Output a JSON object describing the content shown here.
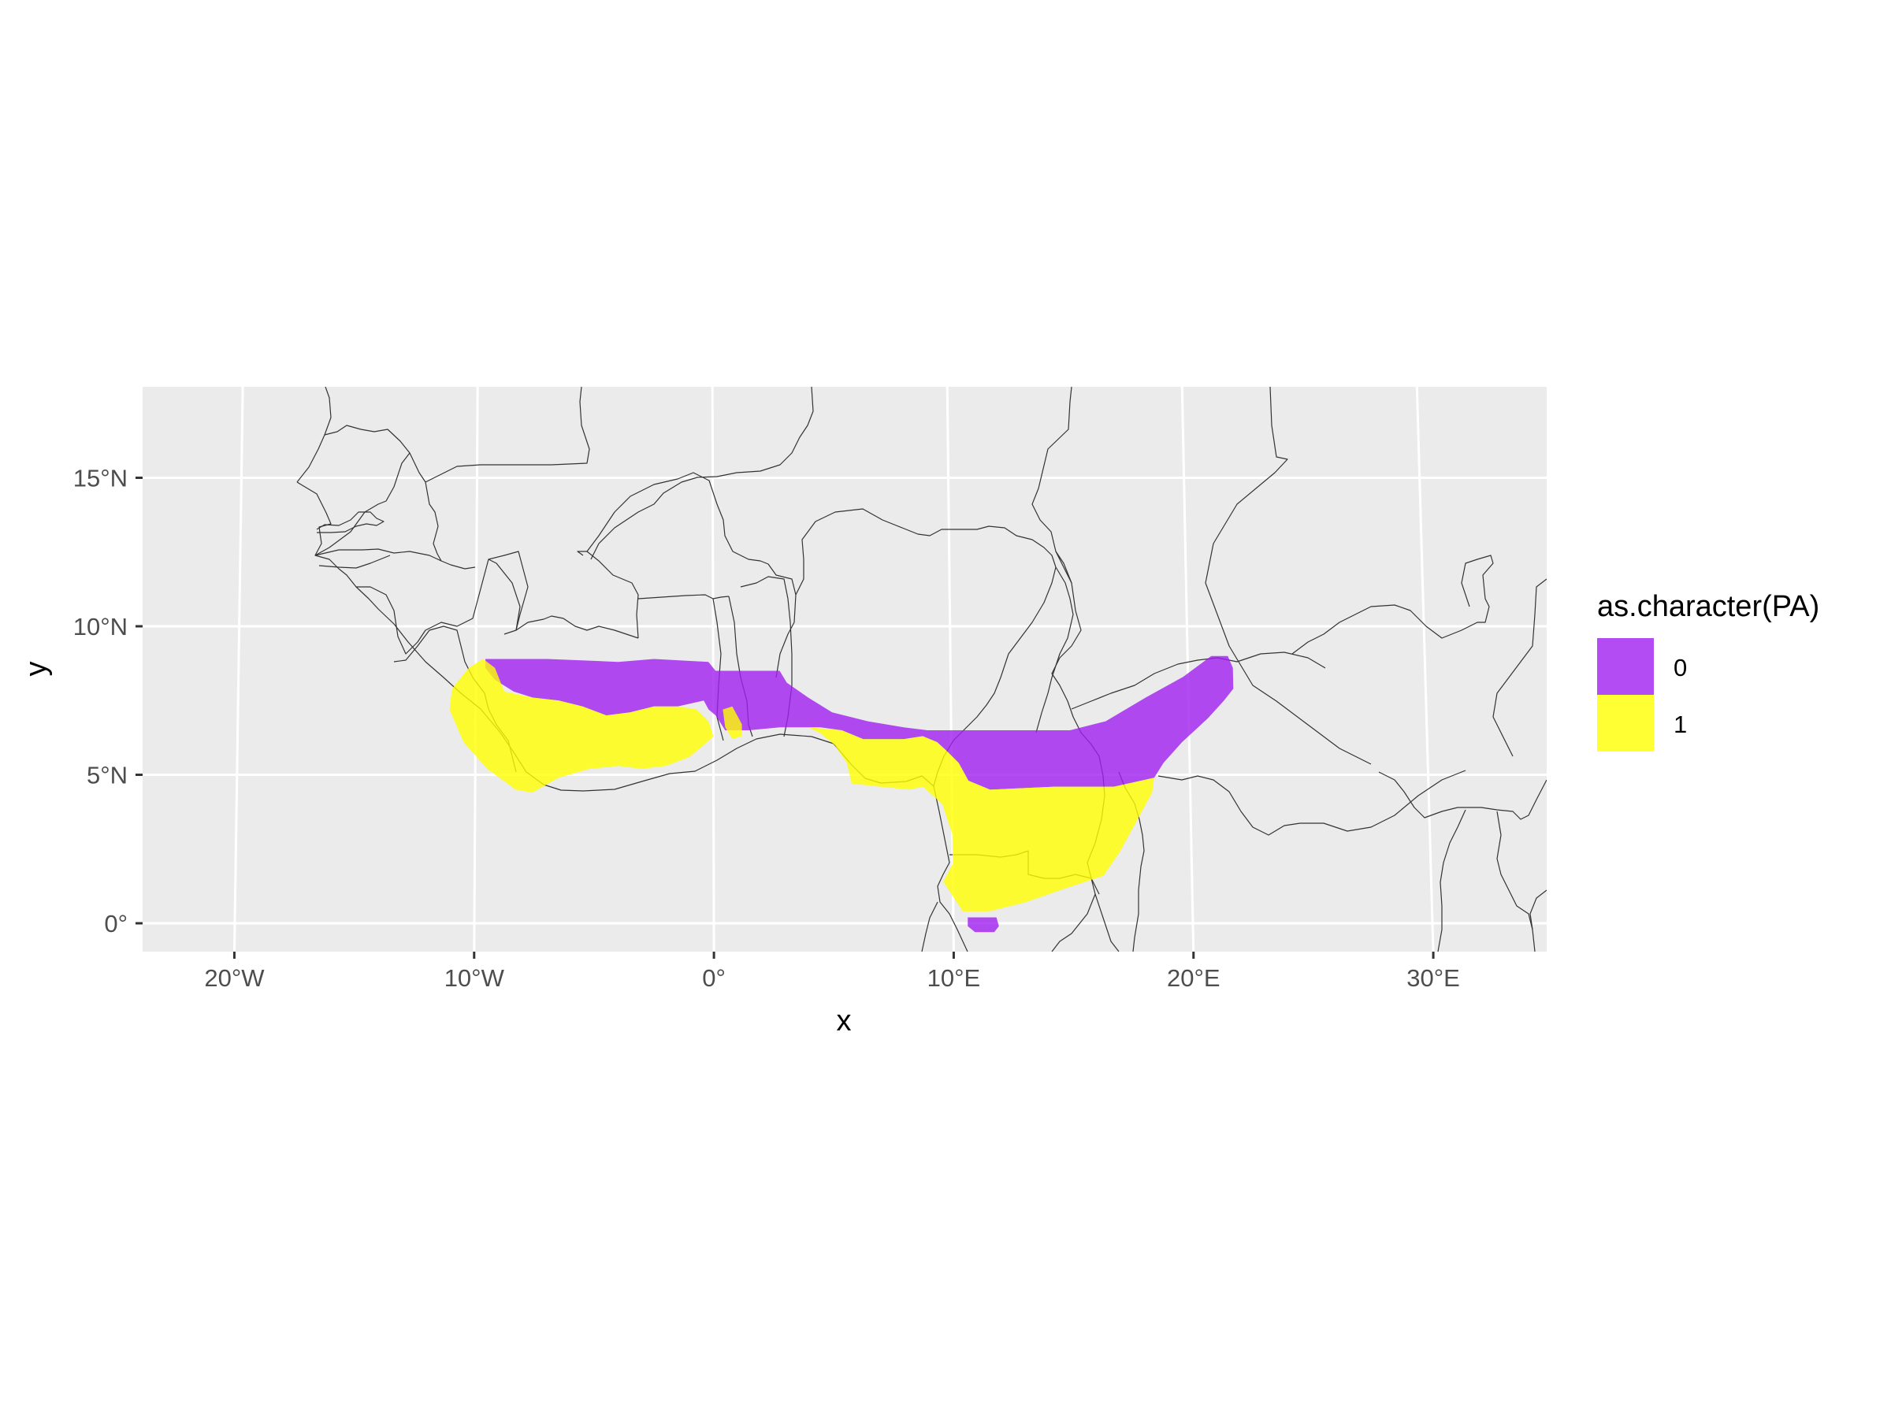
{
  "chart_data": {
    "type": "map-raster",
    "xlabel": "x",
    "ylabel": "y",
    "xlim": [
      -23.5,
      34.5
    ],
    "ylim": [
      -1,
      18
    ],
    "x_ticks": [
      {
        "value": -20,
        "label": "20°W"
      },
      {
        "value": -10,
        "label": "10°W"
      },
      {
        "value": 0,
        "label": "0°"
      },
      {
        "value": 10,
        "label": "10°E"
      },
      {
        "value": 20,
        "label": "20°E"
      },
      {
        "value": 30,
        "label": "30°E"
      }
    ],
    "y_ticks": [
      {
        "value": 0,
        "label": "0°"
      },
      {
        "value": 5,
        "label": "5°N"
      },
      {
        "value": 10,
        "label": "10°N"
      },
      {
        "value": 15,
        "label": "15°N"
      }
    ],
    "legend": {
      "title": "as.character(PA)",
      "position": "right",
      "entries": [
        {
          "label": "0",
          "color": "#A020F0"
        },
        {
          "label": "1",
          "color": "#FFFF00"
        }
      ]
    },
    "fill_opacity": 0.8,
    "panel_background": "#EBEBEB",
    "grid": true,
    "regions": [
      {
        "class": "0",
        "lonlat": [
          [
            -9.6,
            8.9
          ],
          [
            -7,
            8.9
          ],
          [
            -4,
            8.8
          ],
          [
            -2.5,
            8.9
          ],
          [
            -0.2,
            8.8
          ],
          [
            0.1,
            8.5
          ],
          [
            2.8,
            8.5
          ],
          [
            3.1,
            8.1
          ],
          [
            4,
            7.6
          ],
          [
            5,
            7.1
          ],
          [
            6.5,
            6.8
          ],
          [
            8,
            6.6
          ],
          [
            9,
            6.5
          ],
          [
            15,
            6.5
          ],
          [
            16.5,
            6.8
          ],
          [
            18.2,
            7.6
          ],
          [
            19.8,
            8.3
          ],
          [
            21,
            9.0
          ],
          [
            21.7,
            9.0
          ],
          [
            21.9,
            8.6
          ],
          [
            21.9,
            7.9
          ],
          [
            21.5,
            7.5
          ],
          [
            20.8,
            6.9
          ],
          [
            19.7,
            6.1
          ],
          [
            18.9,
            5.4
          ],
          [
            18.5,
            4.9
          ],
          [
            16.8,
            4.6
          ],
          [
            14.3,
            4.6
          ],
          [
            11.6,
            4.5
          ],
          [
            10.7,
            4.8
          ],
          [
            10.3,
            5.4
          ],
          [
            9.8,
            5.8
          ],
          [
            9.4,
            6.1
          ],
          [
            8.8,
            6.3
          ],
          [
            8,
            6.2
          ],
          [
            7.2,
            6.2
          ],
          [
            6.3,
            6.2
          ],
          [
            5.4,
            6.5
          ],
          [
            4.5,
            6.6
          ],
          [
            2.8,
            6.6
          ],
          [
            1.5,
            6.5
          ],
          [
            0.5,
            6.5
          ],
          [
            0.1,
            7.0
          ],
          [
            -0.2,
            7.2
          ],
          [
            -0.4,
            7.5
          ],
          [
            -1.5,
            7.3
          ],
          [
            -2.5,
            7.3
          ],
          [
            -3.5,
            7.1
          ],
          [
            -4.5,
            7.0
          ],
          [
            -5.5,
            7.3
          ],
          [
            -6.5,
            7.5
          ],
          [
            -7.6,
            7.6
          ],
          [
            -8.4,
            7.8
          ],
          [
            -9.2,
            8.2
          ],
          [
            -9.6,
            8.6
          ]
        ]
      },
      {
        "class": "0",
        "lonlat": [
          [
            10.6,
            0.2
          ],
          [
            11.8,
            0.2
          ],
          [
            11.9,
            -0.1
          ],
          [
            11.7,
            -0.3
          ],
          [
            10.9,
            -0.3
          ],
          [
            10.6,
            -0.1
          ]
        ]
      },
      {
        "class": "1",
        "lonlat": [
          [
            -11.1,
            7.2
          ],
          [
            -11.0,
            7.9
          ],
          [
            -10.3,
            8.6
          ],
          [
            -9.7,
            8.9
          ],
          [
            -9.2,
            8.6
          ],
          [
            -8.8,
            7.8
          ],
          [
            -7.6,
            7.6
          ],
          [
            -6.5,
            7.5
          ],
          [
            -5.5,
            7.3
          ],
          [
            -4.5,
            7.0
          ],
          [
            -3.5,
            7.1
          ],
          [
            -2.5,
            7.3
          ],
          [
            -1.5,
            7.3
          ],
          [
            -0.7,
            7.2
          ],
          [
            -0.2,
            6.8
          ],
          [
            0.0,
            6.3
          ],
          [
            -0.4,
            6.0
          ],
          [
            -1.0,
            5.6
          ],
          [
            -2.0,
            5.3
          ],
          [
            -3.0,
            5.2
          ],
          [
            -4.0,
            5.3
          ],
          [
            -5.2,
            5.2
          ],
          [
            -6.5,
            4.9
          ],
          [
            -7.6,
            4.4
          ],
          [
            -8.3,
            4.5
          ],
          [
            -9.5,
            5.2
          ],
          [
            -10.5,
            6.1
          ]
        ]
      },
      {
        "class": "1",
        "lonlat": [
          [
            0.4,
            7.2
          ],
          [
            0.8,
            7.3
          ],
          [
            1.2,
            6.7
          ],
          [
            1.2,
            6.3
          ],
          [
            0.8,
            6.2
          ],
          [
            0.5,
            6.6
          ]
        ]
      },
      {
        "class": "1",
        "lonlat": [
          [
            4.0,
            6.6
          ],
          [
            5.4,
            6.5
          ],
          [
            6.3,
            6.2
          ],
          [
            7.2,
            6.2
          ],
          [
            8.0,
            6.2
          ],
          [
            8.8,
            6.3
          ],
          [
            9.4,
            6.1
          ],
          [
            9.8,
            5.8
          ],
          [
            10.3,
            5.4
          ],
          [
            10.7,
            4.8
          ],
          [
            11.6,
            4.5
          ],
          [
            14.3,
            4.6
          ],
          [
            16.8,
            4.6
          ],
          [
            18.5,
            4.9
          ],
          [
            18.4,
            4.4
          ],
          [
            17.7,
            3.4
          ],
          [
            17.0,
            2.4
          ],
          [
            16.3,
            1.6
          ],
          [
            14.8,
            1.2
          ],
          [
            13.0,
            0.7
          ],
          [
            11.5,
            0.4
          ],
          [
            10.4,
            0.4
          ],
          [
            10.0,
            0.9
          ],
          [
            9.6,
            1.4
          ],
          [
            10.0,
            2.0
          ],
          [
            10.0,
            3.0
          ],
          [
            9.6,
            4.0
          ],
          [
            8.8,
            4.6
          ],
          [
            8.2,
            4.5
          ],
          [
            7.0,
            4.6
          ],
          [
            5.8,
            4.7
          ],
          [
            5.6,
            5.4
          ],
          [
            5.1,
            6.0
          ],
          [
            4.5,
            6.4
          ]
        ]
      }
    ]
  }
}
